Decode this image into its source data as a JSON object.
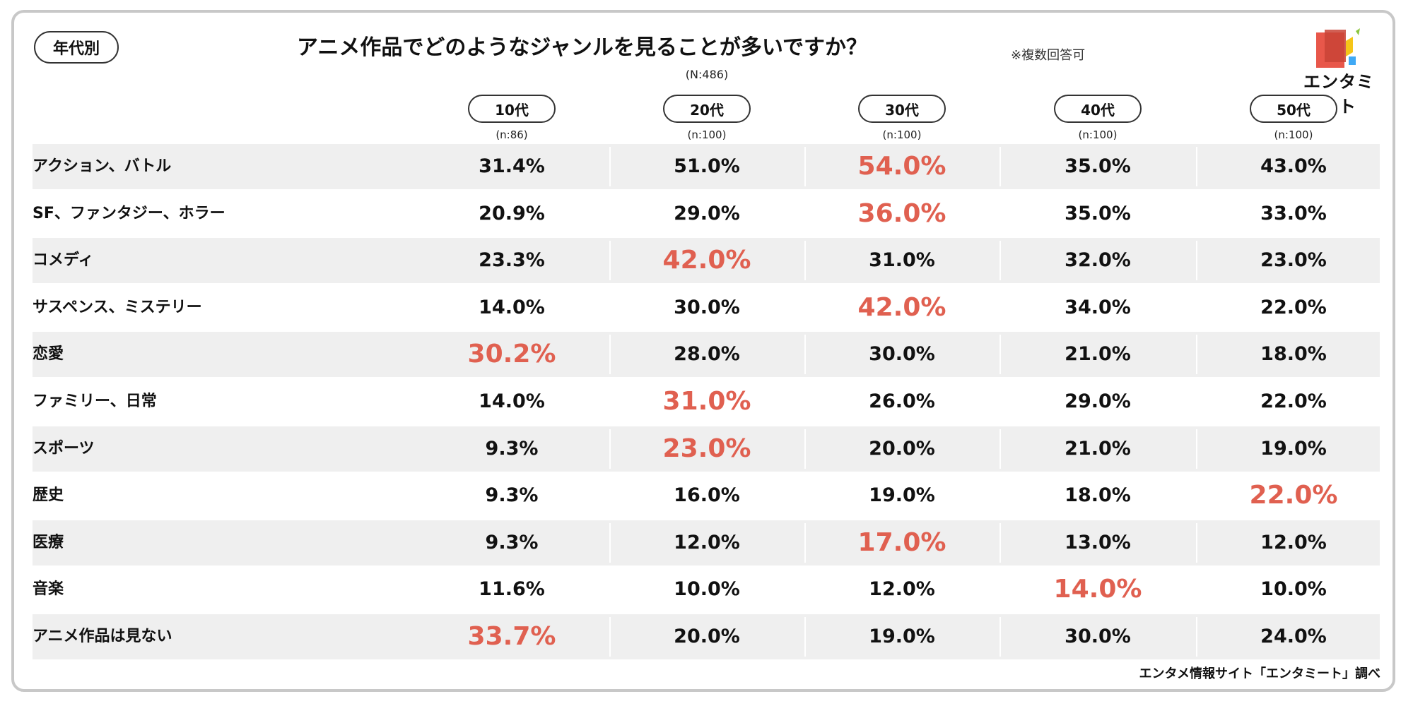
{
  "category_badge": "年代別",
  "title": "アニメ作品でどのようなジャンルを見ることが多いですか？",
  "note": "※複数回答可",
  "total_n": "(N:486)",
  "logo_text": "エンタミート",
  "source": "エンタメ情報サイト「エンタミート」調べ",
  "colors": {
    "highlight": "#e06050",
    "row_shade": "#efefef",
    "frame": "#c8c8c8",
    "logo_red": "#e8574a",
    "logo_yellow": "#f5c518",
    "logo_blue": "#3fa9f5"
  },
  "columns": [
    {
      "label": "10代",
      "n": "(n:86)"
    },
    {
      "label": "20代",
      "n": "(n:100)"
    },
    {
      "label": "30代",
      "n": "(n:100)"
    },
    {
      "label": "40代",
      "n": "(n:100)"
    },
    {
      "label": "50代",
      "n": "(n:100)"
    }
  ],
  "rows": [
    {
      "label": "アクション、バトル",
      "cells": [
        "31.4%",
        "51.0%",
        "54.0%",
        "35.0%",
        "43.0%"
      ]
    },
    {
      "label": "SF、ファンタジー、ホラー",
      "cells": [
        "20.9%",
        "29.0%",
        "36.0%",
        "35.0%",
        "33.0%"
      ]
    },
    {
      "label": "コメディ",
      "cells": [
        "23.3%",
        "42.0%",
        "31.0%",
        "32.0%",
        "23.0%"
      ]
    },
    {
      "label": "サスペンス、ミステリー",
      "cells": [
        "14.0%",
        "30.0%",
        "42.0%",
        "34.0%",
        "22.0%"
      ]
    },
    {
      "label": "恋愛",
      "cells": [
        "30.2%",
        "28.0%",
        "30.0%",
        "21.0%",
        "18.0%"
      ]
    },
    {
      "label": "ファミリー、日常",
      "cells": [
        "14.0%",
        "31.0%",
        "26.0%",
        "29.0%",
        "22.0%"
      ]
    },
    {
      "label": "スポーツ",
      "cells": [
        "9.3%",
        "23.0%",
        "20.0%",
        "21.0%",
        "19.0%"
      ]
    },
    {
      "label": "歴史",
      "cells": [
        "9.3%",
        "16.0%",
        "19.0%",
        "18.0%",
        "22.0%"
      ]
    },
    {
      "label": "医療",
      "cells": [
        "9.3%",
        "12.0%",
        "17.0%",
        "13.0%",
        "12.0%"
      ]
    },
    {
      "label": "音楽",
      "cells": [
        "11.6%",
        "10.0%",
        "12.0%",
        "14.0%",
        "10.0%"
      ]
    },
    {
      "label": "アニメ作品は見ない",
      "cells": [
        "33.7%",
        "20.0%",
        "19.0%",
        "30.0%",
        "24.0%"
      ]
    }
  ],
  "chart_data": {
    "type": "table",
    "title": "アニメ作品でどのようなジャンルを見ることが多いですか？",
    "columns": [
      "10代",
      "20代",
      "30代",
      "40代",
      "50代"
    ],
    "categories": [
      "アクション、バトル",
      "SF、ファンタジー、ホラー",
      "コメディ",
      "サスペンス、ミステリー",
      "恋愛",
      "ファミリー、日常",
      "スポーツ",
      "歴史",
      "医療",
      "音楽",
      "アニメ作品は見ない"
    ],
    "series": [
      {
        "name": "10代",
        "values": [
          31.4,
          20.9,
          23.3,
          14.0,
          30.2,
          14.0,
          9.3,
          9.3,
          9.3,
          11.6,
          33.7
        ]
      },
      {
        "name": "20代",
        "values": [
          51.0,
          29.0,
          42.0,
          30.0,
          28.0,
          31.0,
          23.0,
          16.0,
          12.0,
          10.0,
          20.0
        ]
      },
      {
        "name": "30代",
        "values": [
          54.0,
          36.0,
          31.0,
          42.0,
          30.0,
          26.0,
          20.0,
          19.0,
          17.0,
          12.0,
          19.0
        ]
      },
      {
        "name": "40代",
        "values": [
          35.0,
          35.0,
          32.0,
          34.0,
          21.0,
          29.0,
          21.0,
          18.0,
          13.0,
          14.0,
          30.0
        ]
      },
      {
        "name": "50代",
        "values": [
          43.0,
          33.0,
          23.0,
          22.0,
          18.0,
          22.0,
          19.0,
          22.0,
          12.0,
          10.0,
          24.0
        ]
      }
    ],
    "highlights": [
      {
        "category": "アクション、バトル",
        "column": "30代"
      },
      {
        "category": "SF、ファンタジー、ホラー",
        "column": "30代"
      },
      {
        "category": "コメディ",
        "column": "20代"
      },
      {
        "category": "サスペンス、ミステリー",
        "column": "30代"
      },
      {
        "category": "恋愛",
        "column": "10代"
      },
      {
        "category": "ファミリー、日常",
        "column": "20代"
      },
      {
        "category": "スポーツ",
        "column": "20代"
      },
      {
        "category": "歴史",
        "column": "50代"
      },
      {
        "category": "医療",
        "column": "30代"
      },
      {
        "category": "音楽",
        "column": "40代"
      },
      {
        "category": "アニメ作品は見ない",
        "column": "10代"
      }
    ]
  }
}
